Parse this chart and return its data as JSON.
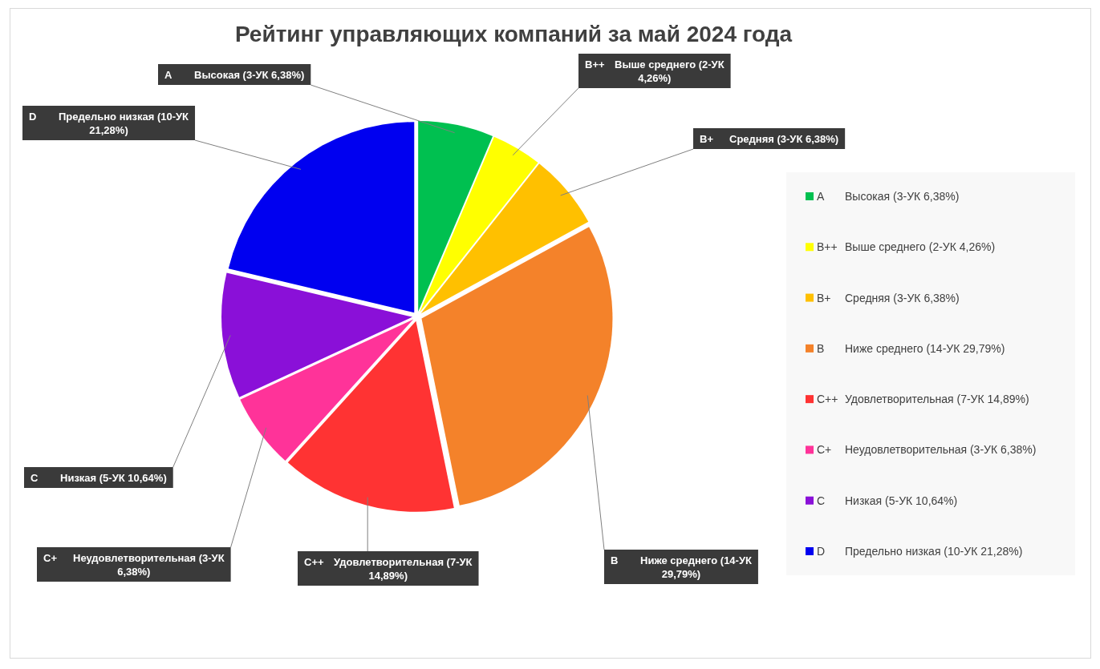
{
  "chart_data": {
    "type": "pie",
    "title": "Рейтинг управляющих компаний за май 2024 года",
    "categories": [
      "A\tВысокая (3-УК 6,38%)",
      "B++\tВыше среднего (2-УК 4,26%)",
      "B+\tСредняя (3-УК 6,38%)",
      "B\tНиже среднего (14-УК 29,79%)",
      "C++\tУдовлетворительная (7-УК 14,89%)",
      "C+\tНеудовлетворительная (3-УК 6,38%)",
      "C\tНизкая (5-УК 10,64%)",
      "D\tПредельно низкая (10-УК 21,28%)"
    ],
    "values": [
      6.38,
      4.26,
      6.38,
      29.79,
      14.89,
      6.38,
      10.64,
      21.28
    ],
    "colors": [
      "#00c050",
      "#ffff00",
      "#ffc000",
      "#f4822a",
      "#ff3333",
      "#ff3399",
      "#8a10d8",
      "#0000f0"
    ],
    "legend": "right"
  }
}
